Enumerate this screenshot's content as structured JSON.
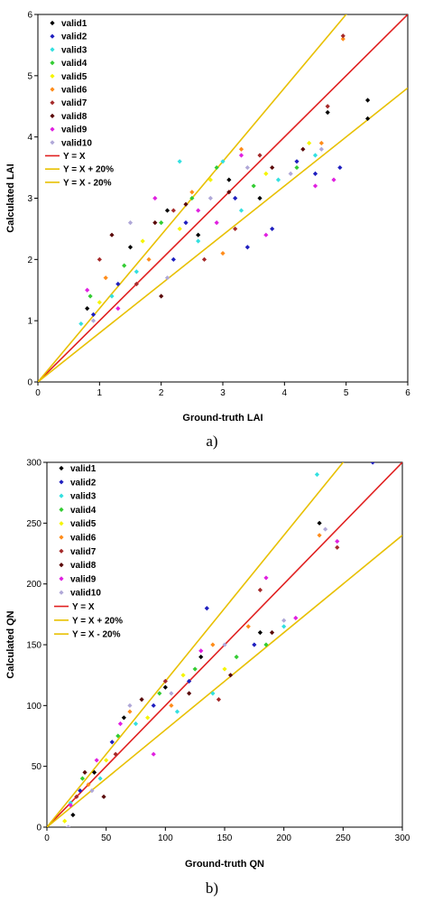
{
  "charts": [
    {
      "caption": "a)",
      "chart_data": {
        "type": "scatter",
        "xlabel": "Ground-truth LAI",
        "ylabel": "Calculated LAI",
        "xlim": [
          0,
          6
        ],
        "ylim": [
          0,
          6
        ],
        "xticks": [
          0,
          1,
          2,
          3,
          4,
          5,
          6
        ],
        "yticks": [
          0,
          1,
          2,
          3,
          4,
          5,
          6
        ],
        "grid": false,
        "legend_position": "top-left",
        "series": [
          {
            "name": "valid1",
            "color": "#000000",
            "points": [
              [
                0.8,
                1.2
              ],
              [
                1.5,
                2.2
              ],
              [
                2.1,
                2.8
              ],
              [
                2.6,
                2.4
              ],
              [
                3.1,
                3.3
              ],
              [
                3.6,
                3.0
              ],
              [
                4.7,
                4.4
              ],
              [
                5.35,
                4.6
              ],
              [
                5.35,
                4.3
              ]
            ]
          },
          {
            "name": "valid2",
            "color": "#1f1fbf",
            "points": [
              [
                0.9,
                1.1
              ],
              [
                1.3,
                1.6
              ],
              [
                2.2,
                2.0
              ],
              [
                2.4,
                2.6
              ],
              [
                3.2,
                3.0
              ],
              [
                3.4,
                2.2
              ],
              [
                3.8,
                2.5
              ],
              [
                4.2,
                3.6
              ],
              [
                4.5,
                3.4
              ],
              [
                4.9,
                3.5
              ]
            ]
          },
          {
            "name": "valid3",
            "color": "#33e0e0",
            "points": [
              [
                0.7,
                0.95
              ],
              [
                1.2,
                1.4
              ],
              [
                1.6,
                1.8
              ],
              [
                2.3,
                3.6
              ],
              [
                2.6,
                2.3
              ],
              [
                3.0,
                3.6
              ],
              [
                3.3,
                2.8
              ],
              [
                3.9,
                3.3
              ],
              [
                4.5,
                3.7
              ]
            ]
          },
          {
            "name": "valid4",
            "color": "#33cc33",
            "points": [
              [
                0.85,
                1.4
              ],
              [
                1.4,
                1.9
              ],
              [
                2.0,
                2.6
              ],
              [
                2.5,
                3.0
              ],
              [
                2.9,
                3.5
              ],
              [
                3.5,
                3.2
              ],
              [
                4.2,
                3.5
              ]
            ]
          },
          {
            "name": "valid5",
            "color": "#f5f500",
            "points": [
              [
                1.0,
                1.3
              ],
              [
                1.7,
                2.3
              ],
              [
                2.3,
                2.5
              ],
              [
                2.8,
                3.3
              ],
              [
                3.7,
                3.4
              ],
              [
                4.4,
                3.9
              ]
            ]
          },
          {
            "name": "valid6",
            "color": "#ff8c1a",
            "points": [
              [
                1.1,
                1.7
              ],
              [
                1.8,
                2.0
              ],
              [
                2.5,
                3.1
              ],
              [
                3.0,
                2.1
              ],
              [
                3.3,
                3.8
              ],
              [
                4.95,
                5.6
              ],
              [
                4.6,
                3.9
              ]
            ]
          },
          {
            "name": "valid7",
            "color": "#a52a2a",
            "points": [
              [
                1.0,
                2.0
              ],
              [
                1.6,
                1.6
              ],
              [
                2.2,
                2.8
              ],
              [
                2.7,
                2.0
              ],
              [
                3.2,
                2.5
              ],
              [
                3.6,
                3.7
              ],
              [
                4.7,
                4.5
              ],
              [
                4.95,
                5.65
              ]
            ]
          },
          {
            "name": "valid8",
            "color": "#5a0a0a",
            "points": [
              [
                1.2,
                2.4
              ],
              [
                1.9,
                2.6
              ],
              [
                2.0,
                1.4
              ],
              [
                2.4,
                2.9
              ],
              [
                3.1,
                3.1
              ],
              [
                3.8,
                3.5
              ],
              [
                4.3,
                3.8
              ]
            ]
          },
          {
            "name": "valid9",
            "color": "#e020e0",
            "points": [
              [
                0.8,
                1.5
              ],
              [
                1.3,
                1.2
              ],
              [
                1.9,
                3.0
              ],
              [
                2.6,
                2.8
              ],
              [
                2.9,
                2.6
              ],
              [
                3.3,
                3.7
              ],
              [
                3.7,
                2.4
              ],
              [
                4.5,
                3.2
              ],
              [
                4.8,
                3.3
              ]
            ]
          },
          {
            "name": "valid10",
            "color": "#b0a8d8",
            "points": [
              [
                0.9,
                1.0
              ],
              [
                1.5,
                2.6
              ],
              [
                2.1,
                1.7
              ],
              [
                2.8,
                3.0
              ],
              [
                3.4,
                3.5
              ],
              [
                4.1,
                3.4
              ],
              [
                4.6,
                3.8
              ]
            ]
          }
        ],
        "lines": [
          {
            "name": "Y = X",
            "color": "#e02020",
            "slope": 1.0
          },
          {
            "name": "Y = X + 20%",
            "color": "#e8c000",
            "slope": 1.2
          },
          {
            "name": "Y = X - 20%",
            "color": "#e8c000",
            "slope": 0.8
          }
        ]
      }
    },
    {
      "caption": "b)",
      "chart_data": {
        "type": "scatter",
        "xlabel": "Ground-truth QN",
        "ylabel": "Calculated QN",
        "xlim": [
          0,
          300
        ],
        "ylim": [
          0,
          300
        ],
        "xticks": [
          0,
          50,
          100,
          150,
          200,
          250,
          300
        ],
        "yticks": [
          0,
          50,
          100,
          150,
          200,
          250,
          300
        ],
        "grid": false,
        "legend_position": "top-left",
        "series": [
          {
            "name": "valid1",
            "color": "#000000",
            "points": [
              [
                22,
                10
              ],
              [
                40,
                45
              ],
              [
                65,
                90
              ],
              [
                100,
                115
              ],
              [
                130,
                140
              ],
              [
                180,
                160
              ],
              [
                230,
                250
              ]
            ]
          },
          {
            "name": "valid2",
            "color": "#1f1fbf",
            "points": [
              [
                28,
                30
              ],
              [
                55,
                70
              ],
              [
                90,
                100
              ],
              [
                120,
                120
              ],
              [
                135,
                180
              ],
              [
                175,
                150
              ],
              [
                275,
                300
              ]
            ]
          },
          {
            "name": "valid3",
            "color": "#33e0e0",
            "points": [
              [
                20,
                20
              ],
              [
                45,
                40
              ],
              [
                75,
                85
              ],
              [
                110,
                95
              ],
              [
                140,
                110
              ],
              [
                200,
                165
              ],
              [
                228,
                290
              ]
            ]
          },
          {
            "name": "valid4",
            "color": "#33cc33",
            "points": [
              [
                30,
                40
              ],
              [
                60,
                75
              ],
              [
                95,
                110
              ],
              [
                125,
                130
              ],
              [
                160,
                140
              ],
              [
                185,
                150
              ]
            ]
          },
          {
            "name": "valid5",
            "color": "#f5f500",
            "points": [
              [
                15,
                5
              ],
              [
                50,
                55
              ],
              [
                85,
                90
              ],
              [
                115,
                125
              ],
              [
                150,
                130
              ]
            ]
          },
          {
            "name": "valid6",
            "color": "#ff8c1a",
            "points": [
              [
                35,
                35
              ],
              [
                70,
                95
              ],
              [
                105,
                100
              ],
              [
                140,
                150
              ],
              [
                170,
                165
              ],
              [
                230,
                240
              ]
            ]
          },
          {
            "name": "valid7",
            "color": "#a52a2a",
            "points": [
              [
                25,
                25
              ],
              [
                58,
                60
              ],
              [
                100,
                120
              ],
              [
                145,
                105
              ],
              [
                180,
                195
              ],
              [
                245,
                230
              ]
            ]
          },
          {
            "name": "valid8",
            "color": "#5a0a0a",
            "points": [
              [
                32,
                45
              ],
              [
                48,
                25
              ],
              [
                80,
                105
              ],
              [
                120,
                110
              ],
              [
                155,
                125
              ],
              [
                190,
                160
              ]
            ]
          },
          {
            "name": "valid9",
            "color": "#e020e0",
            "points": [
              [
                20,
                18
              ],
              [
                42,
                55
              ],
              [
                62,
                85
              ],
              [
                90,
                60
              ],
              [
                130,
                145
              ],
              [
                185,
                205
              ],
              [
                210,
                172
              ],
              [
                245,
                235
              ]
            ]
          },
          {
            "name": "valid10",
            "color": "#b0a8d8",
            "points": [
              [
                18,
                0
              ],
              [
                38,
                30
              ],
              [
                70,
                100
              ],
              [
                105,
                110
              ],
              [
                150,
                150
              ],
              [
                200,
                170
              ],
              [
                235,
                245
              ]
            ]
          }
        ],
        "lines": [
          {
            "name": "Y = X",
            "color": "#e02020",
            "slope": 1.0
          },
          {
            "name": "Y = X + 20%",
            "color": "#e8c000",
            "slope": 1.2
          },
          {
            "name": "Y = X - 20%",
            "color": "#e8c000",
            "slope": 0.8
          }
        ]
      }
    }
  ]
}
